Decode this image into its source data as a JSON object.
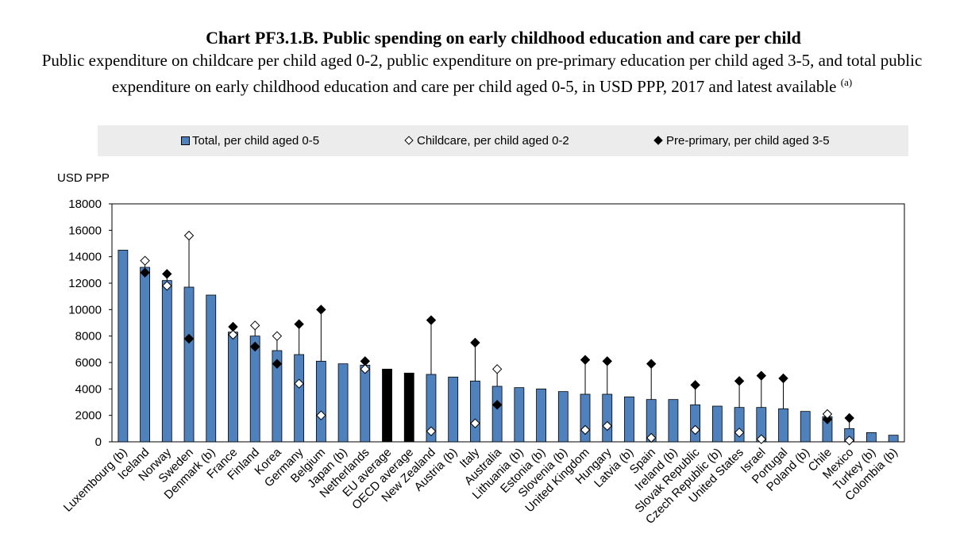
{
  "title": "Chart PF3.1.B. Public spending on early childhood education and care per child",
  "subtitle": "Public expenditure on childcare per child aged 0-2, public expenditure on pre-primary education per child aged 3-5, and total public expenditure on early childhood education and care per child aged 0-5, in USD PPP, 2017 and latest available",
  "subtitle_note": "(a)",
  "legend": {
    "total": "Total, per child aged 0-5",
    "childcare": "Childcare, per child aged 0-2",
    "preprimary": "Pre-primary, per child aged 3-5"
  },
  "colors": {
    "bar": "#4f81bd",
    "average_bar": "#000000",
    "plot_border": "#000000",
    "legend_bg": "#ececec"
  },
  "chart_data": {
    "type": "bar",
    "ylabel": "USD PPP",
    "ylim": [
      0,
      18000
    ],
    "yticks": [
      0,
      2000,
      4000,
      6000,
      8000,
      10000,
      12000,
      14000,
      16000,
      18000
    ],
    "grid": false,
    "legend_position": "top",
    "categories": [
      "Luxembourg (b)",
      "Iceland",
      "Norway",
      "Sweden",
      "Denmark (b)",
      "France",
      "Finland",
      "Korea",
      "Germany",
      "Belgium",
      "Japan (b)",
      "Netherlands",
      "EU average",
      "OECD average",
      "New Zealand",
      "Austria (b)",
      "Italy",
      "Australia",
      "Lithuania (b)",
      "Estonia (b)",
      "Slovenia (b)",
      "United Kingdom",
      "Hungary",
      "Latvia (b)",
      "Spain",
      "Ireland (b)",
      "Slovak Republic",
      "Czech Republic (b)",
      "United States",
      "Israel",
      "Portugal",
      "Poland (b)",
      "Chile",
      "Mexico",
      "Turkey (b)",
      "Colombia (b)"
    ],
    "highlight": [
      "EU average",
      "OECD average"
    ],
    "series": [
      {
        "name": "Total, per child aged 0-5",
        "type": "bar",
        "values": [
          14500,
          13200,
          12200,
          11700,
          11100,
          8300,
          8000,
          6900,
          6600,
          6100,
          5900,
          5800,
          5500,
          5200,
          5100,
          4900,
          4600,
          4200,
          4100,
          4000,
          3800,
          3600,
          3600,
          3400,
          3200,
          3200,
          2800,
          2700,
          2600,
          2600,
          2500,
          2300,
          1900,
          1000,
          700,
          500
        ]
      },
      {
        "name": "Childcare, per child aged 0-2",
        "type": "marker",
        "values": [
          null,
          13700,
          11800,
          15600,
          null,
          8100,
          8800,
          8000,
          4400,
          2000,
          null,
          5500,
          null,
          null,
          800,
          null,
          1400,
          5500,
          null,
          null,
          null,
          900,
          1200,
          null,
          300,
          null,
          900,
          null,
          700,
          200,
          null,
          null,
          2100,
          100,
          null,
          null
        ]
      },
      {
        "name": "Pre-primary, per child aged 3-5",
        "type": "marker",
        "values": [
          null,
          12800,
          12700,
          7800,
          null,
          8700,
          7200,
          5900,
          8900,
          10000,
          null,
          6100,
          null,
          null,
          9200,
          null,
          7500,
          2800,
          null,
          null,
          null,
          6200,
          6100,
          null,
          5900,
          null,
          4300,
          null,
          4600,
          5000,
          4800,
          null,
          1700,
          1800,
          null,
          null
        ]
      }
    ]
  }
}
